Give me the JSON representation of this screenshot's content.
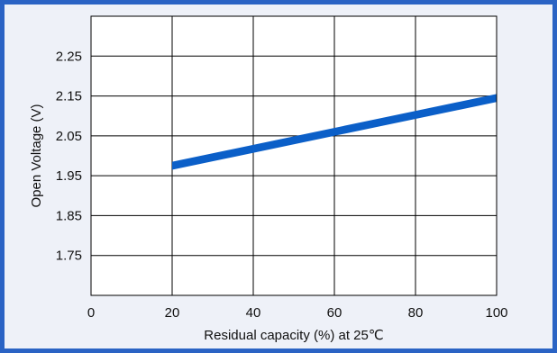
{
  "colors": {
    "border": "#2a63c4",
    "panel": "#eef1f8",
    "plot_background": "#ffffff",
    "grid": "#000000",
    "band": "#0b5fc8",
    "text": "#111111"
  },
  "chart_data": {
    "type": "line",
    "title": "",
    "xlabel": "Residual capacity (%) at 25℃",
    "ylabel": "Open Voltage (V)",
    "xlim": [
      0,
      100
    ],
    "ylim": [
      1.65,
      2.35
    ],
    "x_ticks": [
      0,
      20,
      40,
      60,
      80,
      100
    ],
    "x_tick_labels": [
      "0",
      "20",
      "40",
      "60",
      "80",
      "100"
    ],
    "y_ticks": [
      1.75,
      1.85,
      1.95,
      2.05,
      2.15,
      2.25
    ],
    "y_tick_labels": [
      "1.75",
      "1.85",
      "1.95",
      "2.05",
      "2.15",
      "2.25"
    ],
    "grid": true,
    "series": [
      {
        "x": [
          20,
          100
        ],
        "y_lower": [
          1.965,
          2.135
        ],
        "y_upper": [
          1.985,
          2.155
        ]
      }
    ]
  }
}
